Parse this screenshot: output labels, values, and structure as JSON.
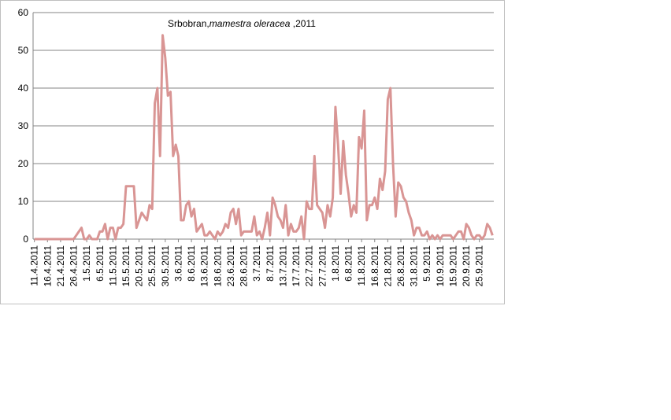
{
  "chart_data": {
    "type": "line",
    "title": {
      "prefix": "Srbobran,",
      "italic": "mamestra oleracea",
      "suffix": " ,2011"
    },
    "xlabel": "",
    "ylabel": "",
    "ylim": [
      0,
      60
    ],
    "yticks": [
      0,
      10,
      20,
      30,
      40,
      50,
      60
    ],
    "grid": true,
    "legend": "none",
    "line_color": "#d99594",
    "x_tick_labels": [
      "11.4.2011",
      "16.4.2011",
      "21.4.2011",
      "26.4.2011",
      "1.5.2011",
      "6.5.2011",
      "11.5.2011",
      "15.5.2011",
      "20.5.2011",
      "25.5.2011",
      "30.5.2011",
      "3.6.2011",
      "8.6.2011",
      "13.6.2011",
      "18.6.2011",
      "23.6.2011",
      "28.6.2011",
      "3.7.2011",
      "8.7.2011",
      "13.7.2011",
      "17.7.2011",
      "22.7.2011",
      "27.7.2011",
      "1.8.2011",
      "6.8.2011",
      "11.8.2011",
      "16.8.2011",
      "21.8.2011",
      "26.8.2011",
      "31.8.2011",
      "5.9.2011",
      "10.9.2011",
      "15.9.2011",
      "20.9.2011",
      "25.9.2011"
    ],
    "series": [
      {
        "values": [
          0,
          0,
          0,
          0,
          0,
          0,
          0,
          0,
          0,
          0,
          0,
          0,
          0,
          0,
          0,
          0,
          1,
          2,
          3,
          0,
          0,
          1,
          0,
          0,
          0,
          2,
          2,
          4,
          0,
          3,
          3,
          0,
          3,
          3,
          4,
          14,
          14,
          14,
          14,
          3,
          5,
          7,
          6,
          5,
          9,
          8,
          36,
          40,
          22,
          54,
          48,
          38,
          39,
          22,
          25,
          22,
          5,
          5,
          9,
          10,
          6,
          8,
          2,
          3,
          4,
          1,
          1,
          2,
          1,
          0,
          2,
          1,
          2,
          4,
          3,
          7,
          8,
          4,
          8,
          1,
          2,
          2,
          2,
          2,
          6,
          1,
          2,
          0,
          3,
          7,
          1,
          11,
          9,
          6,
          5,
          3,
          9,
          1,
          4,
          2,
          2,
          3,
          6,
          0,
          10,
          8,
          8,
          22,
          9,
          8,
          7,
          3,
          9,
          6,
          11,
          35,
          25,
          12,
          26,
          17,
          12,
          6,
          9,
          7,
          27,
          24,
          34,
          5,
          9,
          9,
          11,
          8,
          16,
          13,
          18,
          37,
          40,
          20,
          6,
          15,
          14,
          11,
          10,
          7,
          5,
          1,
          3,
          3,
          1,
          1,
          2,
          0,
          1,
          0,
          1,
          0,
          1,
          1,
          1,
          1,
          0,
          1,
          2,
          2,
          0,
          4,
          3,
          1,
          0,
          1,
          1,
          0,
          1,
          4,
          3,
          1
        ]
      }
    ]
  }
}
